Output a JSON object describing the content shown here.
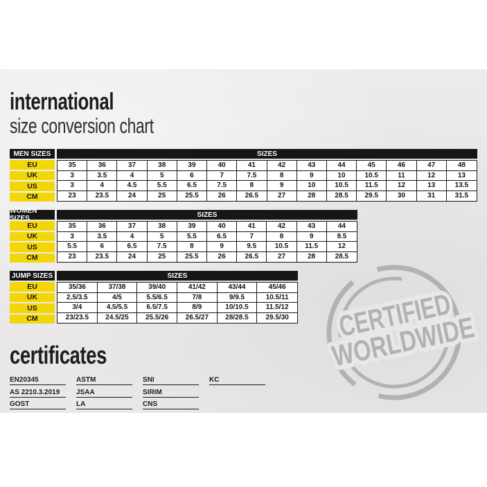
{
  "page": {
    "title_line1": "international",
    "title_line2": "size conversion chart",
    "certificates_title": "certificates"
  },
  "colors": {
    "paper": "#e9e7e7",
    "table_black": "#161616",
    "label_yellow": "#f2d60a",
    "stamp_gray": "#b3b1b1",
    "text_dark": "#1d1d1d"
  },
  "tables": [
    {
      "id": "men",
      "label": "MEN SIZES",
      "sizes_header": "SIZES",
      "rows": [
        {
          "label": "EU",
          "values": [
            "35",
            "36",
            "37",
            "38",
            "39",
            "40",
            "41",
            "42",
            "43",
            "44",
            "45",
            "46",
            "47",
            "48"
          ]
        },
        {
          "label": "UK",
          "values": [
            "3",
            "3.5",
            "4",
            "5",
            "6",
            "7",
            "7.5",
            "8",
            "9",
            "10",
            "10.5",
            "11",
            "12",
            "13"
          ]
        },
        {
          "label": "US",
          "values": [
            "3",
            "4",
            "4.5",
            "5.5",
            "6.5",
            "7.5",
            "8",
            "9",
            "10",
            "10.5",
            "11.5",
            "12",
            "13",
            "13.5"
          ]
        },
        {
          "label": "CM",
          "values": [
            "23",
            "23.5",
            "24",
            "25",
            "25.5",
            "26",
            "26.5",
            "27",
            "28",
            "28.5",
            "29.5",
            "30",
            "31",
            "31.5"
          ]
        }
      ]
    },
    {
      "id": "women",
      "label": "WOMEN SIZES",
      "sizes_header": "SIZES",
      "rows": [
        {
          "label": "EU",
          "values": [
            "35",
            "36",
            "37",
            "38",
            "39",
            "40",
            "41",
            "42",
            "43",
            "44"
          ]
        },
        {
          "label": "UK",
          "values": [
            "3",
            "3.5",
            "4",
            "5",
            "5.5",
            "6.5",
            "7",
            "8",
            "9",
            "9.5"
          ]
        },
        {
          "label": "US",
          "values": [
            "5.5",
            "6",
            "6.5",
            "7.5",
            "8",
            "9",
            "9.5",
            "10.5",
            "11.5",
            "12"
          ]
        },
        {
          "label": "CM",
          "values": [
            "23",
            "23.5",
            "24",
            "25",
            "25.5",
            "26",
            "26.5",
            "27",
            "28",
            "28.5"
          ]
        }
      ]
    },
    {
      "id": "jump",
      "label": "JUMP SIZES",
      "sizes_header": "SIZES",
      "rows": [
        {
          "label": "EU",
          "values": [
            "35/36",
            "37/38",
            "39/40",
            "41/42",
            "43/44",
            "45/46"
          ]
        },
        {
          "label": "UK",
          "values": [
            "2.5/3.5",
            "4/5",
            "5.5/6.5",
            "7/8",
            "9/9.5",
            "10.5/11"
          ]
        },
        {
          "label": "US",
          "values": [
            "3/4",
            "4.5/5.5",
            "6.5/7.5",
            "8/9",
            "10/10.5",
            "11.5/12"
          ]
        },
        {
          "label": "CM",
          "values": [
            "23/23.5",
            "24.5/25",
            "25.5/26",
            "26.5/27",
            "28/28.5",
            "29.5/30"
          ]
        }
      ]
    }
  ],
  "certificates": {
    "columns": [
      [
        "EN20345",
        "AS 2210.3.2019",
        "GOST"
      ],
      [
        "ASTM",
        "JSAA",
        "LA"
      ],
      [
        "SNI",
        "SIRIM",
        "CNS"
      ],
      [
        "KC"
      ]
    ]
  },
  "stamp": {
    "line1": "CERTIFIED",
    "line2": "WORLDWIDE"
  }
}
